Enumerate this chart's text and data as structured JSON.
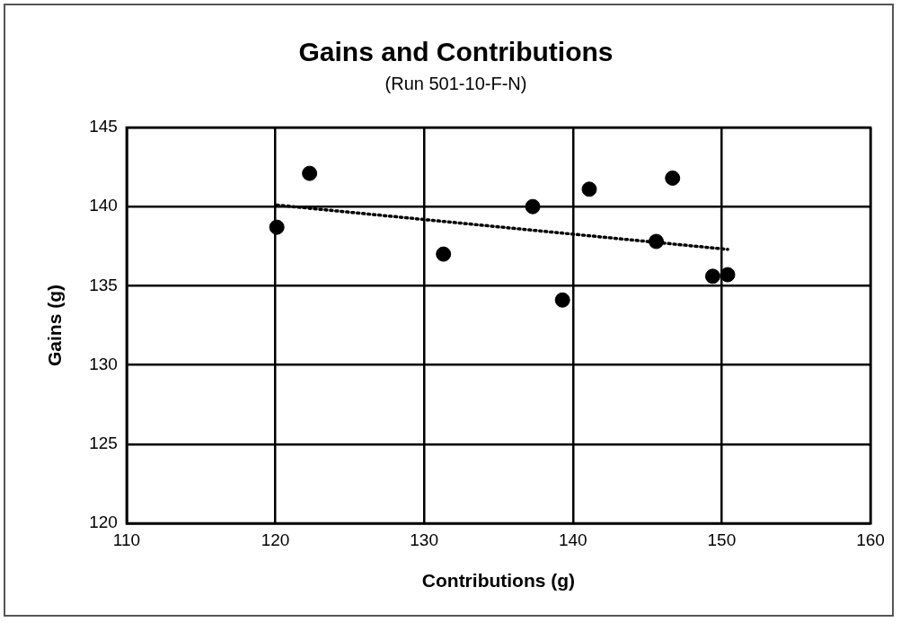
{
  "chart_data": {
    "type": "scatter",
    "title": "Gains and Contributions",
    "subtitle": "(Run 501-10-F-N)",
    "xlabel": "Contributions (g)",
    "ylabel": "Gains (g)",
    "xlim": [
      110,
      160
    ],
    "xticks": [
      110,
      120,
      130,
      140,
      150,
      160
    ],
    "ylim": [
      120,
      145
    ],
    "yticks": [
      120,
      125,
      130,
      135,
      140,
      145
    ],
    "grid": true,
    "legend": false,
    "marker": "circle",
    "series": [
      {
        "color": "#000000",
        "x": [
          120.1,
          122.3,
          131.3,
          137.3,
          139.3,
          141.1,
          145.6,
          146.7,
          149.4,
          150.4
        ],
        "values": [
          138.7,
          142.1,
          137.0,
          140.0,
          134.1,
          141.1,
          137.8,
          141.8,
          135.6,
          135.7
        ]
      },
      {
        "type": "line",
        "color": "#000000",
        "line_style": "dotted",
        "marker": "none",
        "x": [
          120.1,
          150.4
        ],
        "values": [
          140.1,
          137.3
        ]
      }
    ]
  }
}
